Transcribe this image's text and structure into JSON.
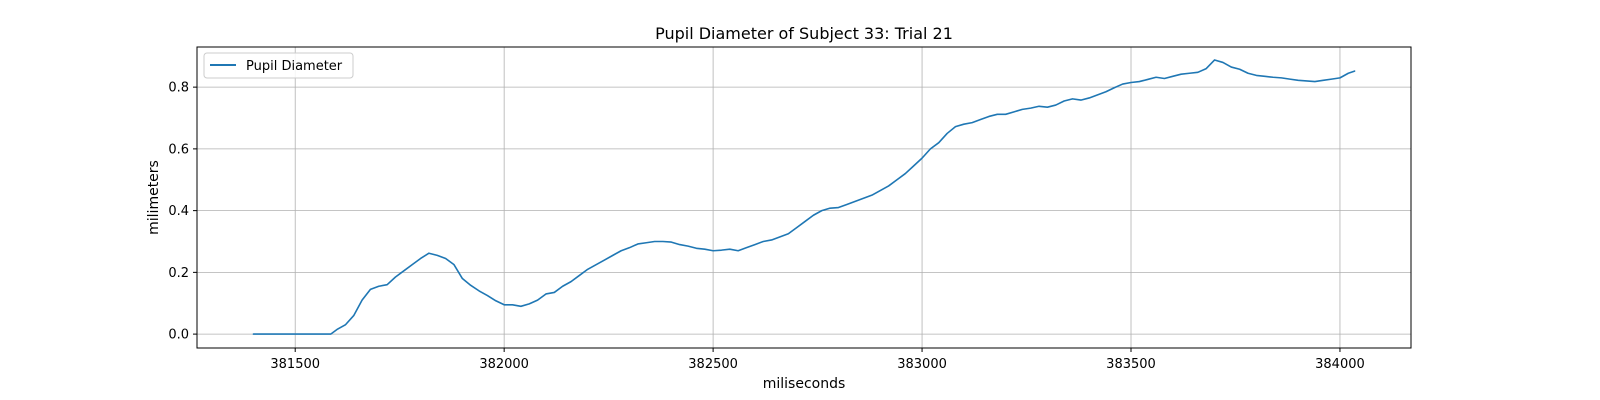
{
  "chart_data": {
    "type": "line",
    "title": "Pupil Diameter of Subject 33: Trial 21",
    "xlabel": "miliseconds",
    "ylabel": "milimeters",
    "xlim": [
      381265,
      384170
    ],
    "ylim": [
      -0.045,
      0.93
    ],
    "xticks": [
      381500,
      382000,
      382500,
      383000,
      383500,
      384000
    ],
    "xtick_labels": [
      "381500",
      "382000",
      "382500",
      "383000",
      "383500",
      "384000"
    ],
    "yticks": [
      0.0,
      0.2,
      0.4,
      0.6,
      0.8
    ],
    "ytick_labels": [
      "0.0",
      "0.2",
      "0.4",
      "0.6",
      "0.8"
    ],
    "grid": true,
    "legend_position": "upper-left",
    "series": [
      {
        "name": "Pupil Diameter",
        "color": "#1f77b4",
        "points": [
          [
            381400,
            0.0
          ],
          [
            381450,
            0.0
          ],
          [
            381500,
            0.0
          ],
          [
            381550,
            0.0
          ],
          [
            381585,
            0.0
          ],
          [
            381600,
            0.015
          ],
          [
            381620,
            0.03
          ],
          [
            381640,
            0.06
          ],
          [
            381660,
            0.11
          ],
          [
            381680,
            0.145
          ],
          [
            381700,
            0.155
          ],
          [
            381720,
            0.16
          ],
          [
            381740,
            0.185
          ],
          [
            381760,
            0.205
          ],
          [
            381780,
            0.225
          ],
          [
            381800,
            0.245
          ],
          [
            381820,
            0.262
          ],
          [
            381840,
            0.255
          ],
          [
            381860,
            0.245
          ],
          [
            381880,
            0.225
          ],
          [
            381900,
            0.18
          ],
          [
            381920,
            0.158
          ],
          [
            381940,
            0.14
          ],
          [
            381960,
            0.125
          ],
          [
            381980,
            0.108
          ],
          [
            382000,
            0.095
          ],
          [
            382020,
            0.095
          ],
          [
            382040,
            0.09
          ],
          [
            382060,
            0.098
          ],
          [
            382080,
            0.11
          ],
          [
            382100,
            0.13
          ],
          [
            382120,
            0.135
          ],
          [
            382140,
            0.155
          ],
          [
            382160,
            0.17
          ],
          [
            382180,
            0.19
          ],
          [
            382200,
            0.21
          ],
          [
            382220,
            0.225
          ],
          [
            382240,
            0.24
          ],
          [
            382260,
            0.255
          ],
          [
            382280,
            0.27
          ],
          [
            382300,
            0.28
          ],
          [
            382320,
            0.292
          ],
          [
            382340,
            0.296
          ],
          [
            382360,
            0.3
          ],
          [
            382380,
            0.3
          ],
          [
            382400,
            0.298
          ],
          [
            382420,
            0.29
          ],
          [
            382440,
            0.285
          ],
          [
            382460,
            0.278
          ],
          [
            382480,
            0.275
          ],
          [
            382500,
            0.27
          ],
          [
            382520,
            0.272
          ],
          [
            382540,
            0.275
          ],
          [
            382560,
            0.27
          ],
          [
            382580,
            0.28
          ],
          [
            382600,
            0.29
          ],
          [
            382620,
            0.3
          ],
          [
            382640,
            0.305
          ],
          [
            382660,
            0.315
          ],
          [
            382680,
            0.325
          ],
          [
            382700,
            0.345
          ],
          [
            382720,
            0.365
          ],
          [
            382740,
            0.385
          ],
          [
            382760,
            0.4
          ],
          [
            382780,
            0.408
          ],
          [
            382800,
            0.41
          ],
          [
            382820,
            0.42
          ],
          [
            382840,
            0.43
          ],
          [
            382860,
            0.44
          ],
          [
            382880,
            0.45
          ],
          [
            382900,
            0.465
          ],
          [
            382920,
            0.48
          ],
          [
            382940,
            0.5
          ],
          [
            382960,
            0.52
          ],
          [
            382980,
            0.545
          ],
          [
            383000,
            0.57
          ],
          [
            383020,
            0.6
          ],
          [
            383040,
            0.62
          ],
          [
            383060,
            0.65
          ],
          [
            383080,
            0.672
          ],
          [
            383100,
            0.68
          ],
          [
            383120,
            0.685
          ],
          [
            383140,
            0.695
          ],
          [
            383160,
            0.705
          ],
          [
            383180,
            0.712
          ],
          [
            383200,
            0.712
          ],
          [
            383220,
            0.72
          ],
          [
            383240,
            0.728
          ],
          [
            383260,
            0.732
          ],
          [
            383280,
            0.738
          ],
          [
            383300,
            0.735
          ],
          [
            383320,
            0.742
          ],
          [
            383340,
            0.755
          ],
          [
            383360,
            0.762
          ],
          [
            383380,
            0.758
          ],
          [
            383400,
            0.765
          ],
          [
            383420,
            0.775
          ],
          [
            383440,
            0.785
          ],
          [
            383460,
            0.798
          ],
          [
            383480,
            0.81
          ],
          [
            383500,
            0.815
          ],
          [
            383520,
            0.818
          ],
          [
            383540,
            0.825
          ],
          [
            383560,
            0.832
          ],
          [
            383580,
            0.828
          ],
          [
            383600,
            0.835
          ],
          [
            383620,
            0.842
          ],
          [
            383640,
            0.845
          ],
          [
            383660,
            0.848
          ],
          [
            383680,
            0.86
          ],
          [
            383700,
            0.888
          ],
          [
            383720,
            0.88
          ],
          [
            383740,
            0.865
          ],
          [
            383760,
            0.858
          ],
          [
            383780,
            0.845
          ],
          [
            383800,
            0.838
          ],
          [
            383820,
            0.835
          ],
          [
            383840,
            0.832
          ],
          [
            383860,
            0.83
          ],
          [
            383880,
            0.826
          ],
          [
            383900,
            0.822
          ],
          [
            383920,
            0.82
          ],
          [
            383940,
            0.818
          ],
          [
            383960,
            0.822
          ],
          [
            383980,
            0.826
          ],
          [
            384000,
            0.83
          ],
          [
            384020,
            0.845
          ],
          [
            384035,
            0.852
          ]
        ]
      }
    ]
  }
}
